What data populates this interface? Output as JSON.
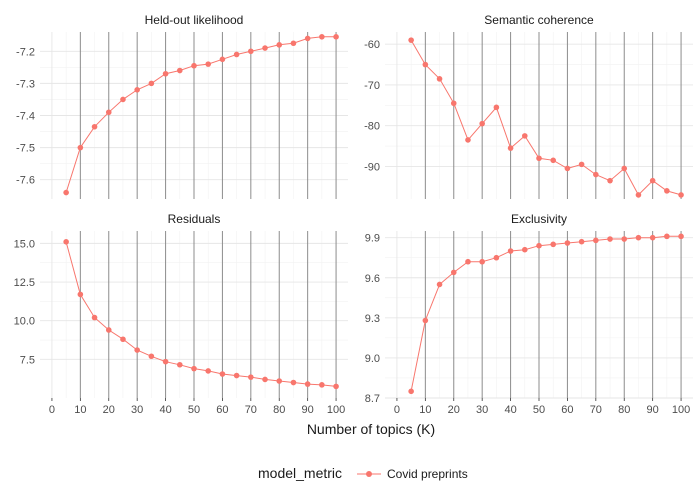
{
  "chart_data": {
    "type": "line",
    "xlabel": "Number of topics (K)",
    "x_ticks": [
      0,
      10,
      20,
      30,
      40,
      50,
      60,
      70,
      80,
      90,
      100
    ],
    "x_values": [
      5,
      10,
      15,
      20,
      25,
      30,
      35,
      40,
      45,
      50,
      55,
      60,
      65,
      70,
      75,
      80,
      85,
      90,
      95,
      100
    ],
    "series_name": "Covid preprints",
    "series_color": "#F8766D",
    "legend": {
      "title": "model_metric",
      "position": "bottom",
      "entries": [
        "Covid preprints"
      ]
    },
    "panels": [
      {
        "title": "Held-out likelihood",
        "ylim": [
          -7.66,
          -7.14
        ],
        "y_ticks": [
          -7.6,
          -7.5,
          -7.4,
          -7.3,
          -7.2
        ],
        "y_tick_labels": [
          "-7.6",
          "-7.5",
          "-7.4",
          "-7.3",
          "-7.2"
        ],
        "values": [
          -7.64,
          -7.5,
          -7.435,
          -7.39,
          -7.35,
          -7.32,
          -7.3,
          -7.27,
          -7.26,
          -7.245,
          -7.24,
          -7.225,
          -7.21,
          -7.2,
          -7.19,
          -7.18,
          -7.175,
          -7.16,
          -7.155,
          -7.155
        ]
      },
      {
        "title": "Semantic coherence",
        "ylim": [
          -98,
          -57
        ],
        "y_ticks": [
          -90,
          -80,
          -70,
          -60
        ],
        "y_tick_labels": [
          "-90",
          "-80",
          "-70",
          "-60"
        ],
        "values": [
          -59,
          -65,
          -68.5,
          -74.5,
          -83.5,
          -79.5,
          -75.5,
          -85.5,
          -82.5,
          -88,
          -88.5,
          -90.5,
          -89.5,
          -92,
          -93.5,
          -90.5,
          -97,
          -93.5,
          -96,
          -97
        ]
      },
      {
        "title": "Residuals",
        "ylim": [
          5.0,
          15.8
        ],
        "y_ticks": [
          7.5,
          10.0,
          12.5,
          15.0
        ],
        "y_tick_labels": [
          "7.5",
          "10.0",
          "12.5",
          "15.0"
        ],
        "values": [
          15.1,
          11.7,
          10.2,
          9.4,
          8.8,
          8.1,
          7.7,
          7.35,
          7.15,
          6.9,
          6.75,
          6.55,
          6.45,
          6.35,
          6.2,
          6.1,
          6.0,
          5.9,
          5.85,
          5.75
        ]
      },
      {
        "title": "Exclusivity",
        "ylim": [
          8.7,
          9.95
        ],
        "y_ticks": [
          8.7,
          9.0,
          9.3,
          9.6,
          9.9
        ],
        "y_tick_labels": [
          "8.7",
          "9.0",
          "9.3",
          "9.6",
          "9.9"
        ],
        "values": [
          8.75,
          9.28,
          9.55,
          9.64,
          9.72,
          9.72,
          9.75,
          9.8,
          9.81,
          9.84,
          9.85,
          9.86,
          9.87,
          9.88,
          9.89,
          9.89,
          9.9,
          9.9,
          9.91,
          9.91
        ]
      }
    ]
  }
}
